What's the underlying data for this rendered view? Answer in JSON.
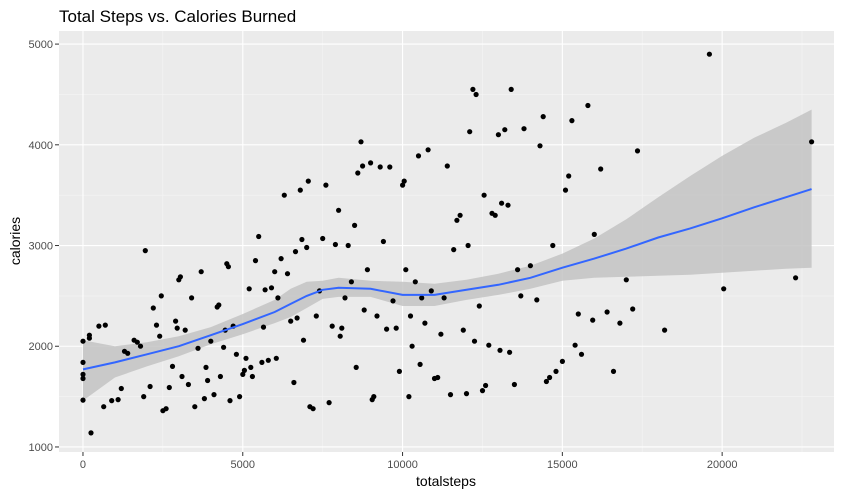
{
  "chart_data": {
    "type": "scatter",
    "title": "Total Steps vs. Calories Burned",
    "xlabel": "totalsteps",
    "ylabel": "calories",
    "xlim": [
      -750,
      23500
    ],
    "ylim": [
      950,
      5130
    ],
    "x_ticks": [
      {
        "value": 0,
        "label": "0"
      },
      {
        "value": 5000,
        "label": "5000"
      },
      {
        "value": 10000,
        "label": "10000"
      },
      {
        "value": 15000,
        "label": "15000"
      },
      {
        "value": 20000,
        "label": "20000"
      }
    ],
    "y_ticks": [
      {
        "value": 1000,
        "label": "1000"
      },
      {
        "value": 2000,
        "label": "2000"
      },
      {
        "value": 3000,
        "label": "3000"
      },
      {
        "value": 4000,
        "label": "4000"
      },
      {
        "value": 5000,
        "label": "5000"
      }
    ],
    "grid": true,
    "legend": "none",
    "colors": {
      "panel": "#ebebeb",
      "grid_major": "#ffffff",
      "grid_minor": "#f5f5f5",
      "point": "#000000",
      "smooth_line": "#3366ff",
      "confidence_band": "#c3c3c3"
    },
    "points": [
      [
        0,
        1465
      ],
      [
        0,
        1680
      ],
      [
        0,
        1720
      ],
      [
        0,
        1840
      ],
      [
        0,
        2050
      ],
      [
        200,
        2080
      ],
      [
        200,
        2110
      ],
      [
        250,
        1140
      ],
      [
        500,
        2200
      ],
      [
        650,
        1400
      ],
      [
        700,
        2210
      ],
      [
        900,
        1460
      ],
      [
        1100,
        1470
      ],
      [
        1200,
        1580
      ],
      [
        1300,
        1950
      ],
      [
        1400,
        1930
      ],
      [
        1600,
        2060
      ],
      [
        1700,
        2040
      ],
      [
        1800,
        2000
      ],
      [
        1900,
        1500
      ],
      [
        1950,
        2950
      ],
      [
        2100,
        1600
      ],
      [
        2200,
        2380
      ],
      [
        2300,
        2210
      ],
      [
        2400,
        2100
      ],
      [
        2450,
        2500
      ],
      [
        2500,
        1360
      ],
      [
        2600,
        1380
      ],
      [
        2700,
        1590
      ],
      [
        2800,
        1800
      ],
      [
        2900,
        2250
      ],
      [
        2950,
        2180
      ],
      [
        3000,
        2660
      ],
      [
        3050,
        2690
      ],
      [
        3100,
        1700
      ],
      [
        3200,
        2160
      ],
      [
        3300,
        1620
      ],
      [
        3400,
        2480
      ],
      [
        3500,
        1400
      ],
      [
        3600,
        1980
      ],
      [
        3700,
        2740
      ],
      [
        3800,
        1480
      ],
      [
        3850,
        1790
      ],
      [
        3900,
        1660
      ],
      [
        4000,
        2050
      ],
      [
        4100,
        1520
      ],
      [
        4200,
        2390
      ],
      [
        4250,
        2410
      ],
      [
        4300,
        1700
      ],
      [
        4400,
        1990
      ],
      [
        4450,
        2160
      ],
      [
        4500,
        2820
      ],
      [
        4550,
        2790
      ],
      [
        4600,
        1460
      ],
      [
        4700,
        2200
      ],
      [
        4800,
        1920
      ],
      [
        4900,
        1500
      ],
      [
        5000,
        1720
      ],
      [
        5050,
        1760
      ],
      [
        5100,
        1880
      ],
      [
        5200,
        2570
      ],
      [
        5250,
        1790
      ],
      [
        5300,
        1700
      ],
      [
        5400,
        2850
      ],
      [
        5500,
        3090
      ],
      [
        5600,
        1840
      ],
      [
        5650,
        2190
      ],
      [
        5700,
        2560
      ],
      [
        5800,
        1860
      ],
      [
        5900,
        2580
      ],
      [
        6000,
        2740
      ],
      [
        6050,
        1880
      ],
      [
        6100,
        2480
      ],
      [
        6200,
        2870
      ],
      [
        6300,
        3500
      ],
      [
        6400,
        2720
      ],
      [
        6500,
        2250
      ],
      [
        6600,
        1640
      ],
      [
        6650,
        2940
      ],
      [
        6700,
        2280
      ],
      [
        6800,
        3550
      ],
      [
        6850,
        3060
      ],
      [
        6900,
        2060
      ],
      [
        7000,
        2980
      ],
      [
        7050,
        3640
      ],
      [
        7100,
        1400
      ],
      [
        7200,
        1380
      ],
      [
        7300,
        2300
      ],
      [
        7400,
        2550
      ],
      [
        7500,
        3070
      ],
      [
        7600,
        3600
      ],
      [
        7700,
        1440
      ],
      [
        7800,
        2200
      ],
      [
        7900,
        3010
      ],
      [
        8000,
        3350
      ],
      [
        8050,
        2100
      ],
      [
        8100,
        2180
      ],
      [
        8200,
        2480
      ],
      [
        8300,
        3000
      ],
      [
        8400,
        2640
      ],
      [
        8500,
        3200
      ],
      [
        8550,
        1790
      ],
      [
        8600,
        3720
      ],
      [
        8700,
        4030
      ],
      [
        8750,
        3790
      ],
      [
        8800,
        2360
      ],
      [
        8900,
        2760
      ],
      [
        9000,
        3820
      ],
      [
        9050,
        1470
      ],
      [
        9100,
        1500
      ],
      [
        9200,
        2300
      ],
      [
        9300,
        3780
      ],
      [
        9400,
        3040
      ],
      [
        9500,
        2170
      ],
      [
        9600,
        3780
      ],
      [
        9700,
        2450
      ],
      [
        9800,
        2180
      ],
      [
        9900,
        1750
      ],
      [
        10000,
        3600
      ],
      [
        10050,
        3640
      ],
      [
        10100,
        2760
      ],
      [
        10200,
        1500
      ],
      [
        10250,
        2300
      ],
      [
        10300,
        2000
      ],
      [
        10400,
        2640
      ],
      [
        10500,
        3890
      ],
      [
        10550,
        1820
      ],
      [
        10600,
        2480
      ],
      [
        10700,
        2230
      ],
      [
        10800,
        3950
      ],
      [
        10900,
        2550
      ],
      [
        11000,
        1680
      ],
      [
        11100,
        1690
      ],
      [
        11200,
        2120
      ],
      [
        11300,
        2480
      ],
      [
        11400,
        3790
      ],
      [
        11500,
        1520
      ],
      [
        11600,
        2960
      ],
      [
        11700,
        3250
      ],
      [
        11800,
        3300
      ],
      [
        11900,
        2160
      ],
      [
        12000,
        1530
      ],
      [
        12050,
        3000
      ],
      [
        12100,
        4130
      ],
      [
        12200,
        4550
      ],
      [
        12250,
        2050
      ],
      [
        12300,
        4500
      ],
      [
        12400,
        2400
      ],
      [
        12500,
        1560
      ],
      [
        12550,
        3500
      ],
      [
        12600,
        1610
      ],
      [
        12700,
        2010
      ],
      [
        12800,
        3320
      ],
      [
        12900,
        3300
      ],
      [
        13000,
        4100
      ],
      [
        13050,
        1960
      ],
      [
        13100,
        3420
      ],
      [
        13200,
        4150
      ],
      [
        13300,
        3400
      ],
      [
        13350,
        1940
      ],
      [
        13400,
        4550
      ],
      [
        13500,
        1620
      ],
      [
        13600,
        2760
      ],
      [
        13700,
        2500
      ],
      [
        13800,
        4160
      ],
      [
        14000,
        2800
      ],
      [
        14200,
        2460
      ],
      [
        14300,
        3990
      ],
      [
        14400,
        4280
      ],
      [
        14500,
        1650
      ],
      [
        14600,
        1690
      ],
      [
        14700,
        3000
      ],
      [
        14800,
        1750
      ],
      [
        15000,
        1850
      ],
      [
        15100,
        3550
      ],
      [
        15200,
        3690
      ],
      [
        15300,
        4240
      ],
      [
        15400,
        2010
      ],
      [
        15500,
        2320
      ],
      [
        15600,
        1920
      ],
      [
        15800,
        4390
      ],
      [
        15950,
        2260
      ],
      [
        16000,
        3110
      ],
      [
        16200,
        3760
      ],
      [
        16400,
        2340
      ],
      [
        16600,
        1750
      ],
      [
        16800,
        2230
      ],
      [
        17000,
        2660
      ],
      [
        17200,
        2370
      ],
      [
        17350,
        3940
      ],
      [
        18200,
        2160
      ],
      [
        19600,
        4900
      ],
      [
        20050,
        2570
      ],
      [
        22300,
        2680
      ],
      [
        22800,
        4030
      ]
    ],
    "smooth": [
      [
        0,
        1770
      ],
      [
        1000,
        1840
      ],
      [
        2000,
        1920
      ],
      [
        3000,
        2000
      ],
      [
        4000,
        2110
      ],
      [
        5000,
        2220
      ],
      [
        6000,
        2340
      ],
      [
        6500,
        2420
      ],
      [
        7000,
        2500
      ],
      [
        7500,
        2560
      ],
      [
        8000,
        2580
      ],
      [
        9000,
        2570
      ],
      [
        10000,
        2510
      ],
      [
        11000,
        2510
      ],
      [
        12000,
        2560
      ],
      [
        13000,
        2610
      ],
      [
        14000,
        2680
      ],
      [
        15000,
        2780
      ],
      [
        16000,
        2870
      ],
      [
        17000,
        2970
      ],
      [
        18000,
        3080
      ],
      [
        19000,
        3170
      ],
      [
        20000,
        3270
      ],
      [
        21000,
        3380
      ],
      [
        22000,
        3480
      ],
      [
        22800,
        3560
      ]
    ],
    "band_upper": [
      [
        0,
        2060
      ],
      [
        1000,
        2000
      ],
      [
        2000,
        2040
      ],
      [
        3000,
        2100
      ],
      [
        4000,
        2190
      ],
      [
        5000,
        2320
      ],
      [
        6000,
        2460
      ],
      [
        6500,
        2570
      ],
      [
        7000,
        2640
      ],
      [
        7500,
        2650
      ],
      [
        8000,
        2680
      ],
      [
        9000,
        2650
      ],
      [
        10000,
        2640
      ],
      [
        11000,
        2620
      ],
      [
        12000,
        2660
      ],
      [
        13000,
        2720
      ],
      [
        14000,
        2800
      ],
      [
        15000,
        2920
      ],
      [
        16000,
        3070
      ],
      [
        17000,
        3260
      ],
      [
        18000,
        3480
      ],
      [
        19000,
        3690
      ],
      [
        20000,
        3890
      ],
      [
        21000,
        4070
      ],
      [
        22000,
        4220
      ],
      [
        22800,
        4350
      ]
    ],
    "band_lower": [
      [
        0,
        1460
      ],
      [
        1000,
        1690
      ],
      [
        2000,
        1800
      ],
      [
        3000,
        1900
      ],
      [
        4000,
        2020
      ],
      [
        5000,
        2120
      ],
      [
        6000,
        2230
      ],
      [
        6500,
        2290
      ],
      [
        7000,
        2380
      ],
      [
        7500,
        2470
      ],
      [
        8000,
        2490
      ],
      [
        9000,
        2490
      ],
      [
        10000,
        2400
      ],
      [
        11000,
        2400
      ],
      [
        12000,
        2460
      ],
      [
        13000,
        2510
      ],
      [
        14000,
        2570
      ],
      [
        15000,
        2650
      ],
      [
        16000,
        2680
      ],
      [
        17000,
        2690
      ],
      [
        18000,
        2700
      ],
      [
        19000,
        2710
      ],
      [
        20000,
        2730
      ],
      [
        21000,
        2750
      ],
      [
        22000,
        2770
      ],
      [
        22800,
        2780
      ]
    ]
  }
}
